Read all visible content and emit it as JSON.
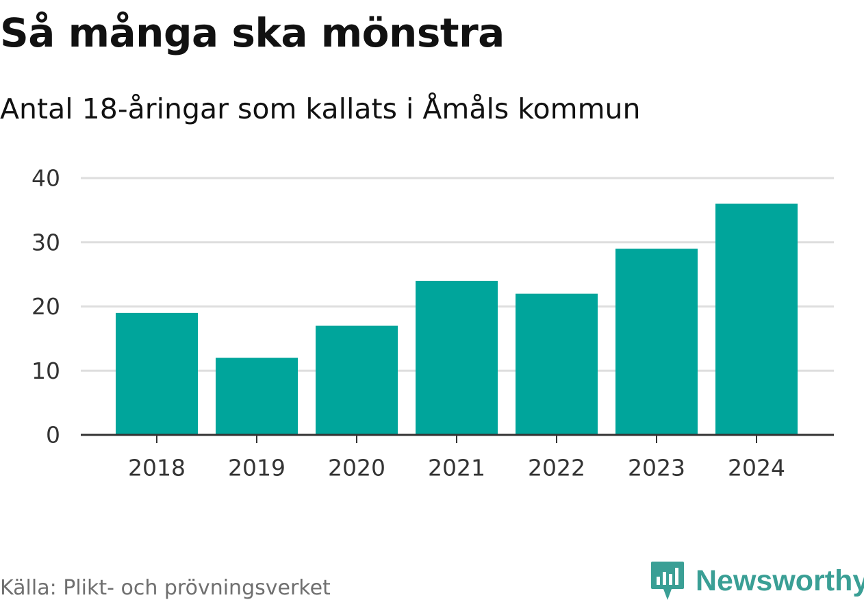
{
  "header": {
    "title": "Så många ska mönstra",
    "subtitle": "Antal 18-åringar som kallats i Åmåls kommun"
  },
  "footer": {
    "source": "Källa: Plikt- och prövningsverket",
    "brand": "Newsworthy",
    "brand_icon": "newsworthy-logo-icon"
  },
  "colors": {
    "bar": "#00a59b",
    "grid": "#dedede",
    "axis": "#333333",
    "text": "#111111",
    "muted": "#6f6f6f",
    "brand": "#3a9f95"
  },
  "chart_data": {
    "type": "bar",
    "title": "Så många ska mönstra",
    "subtitle": "Antal 18-åringar som kallats i Åmåls kommun",
    "xlabel": "",
    "ylabel": "",
    "categories": [
      "2018",
      "2019",
      "2020",
      "2021",
      "2022",
      "2023",
      "2024"
    ],
    "values": [
      19,
      12,
      17,
      24,
      22,
      29,
      36
    ],
    "ylim": [
      0,
      40
    ],
    "yticks": [
      0,
      10,
      20,
      30,
      40
    ],
    "ytick_labels": [
      "0",
      "10",
      "20",
      "30",
      "40"
    ],
    "grid": true,
    "legend": "none"
  }
}
